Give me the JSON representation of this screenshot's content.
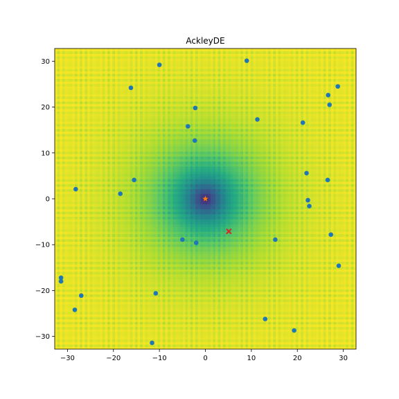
{
  "chart_data": {
    "type": "scatter",
    "title": "AckleyDE",
    "xlabel": "",
    "ylabel": "",
    "xlim": [
      -32.768,
      32.768
    ],
    "ylim": [
      -32.768,
      32.768
    ],
    "xticks": [
      -30,
      -20,
      -10,
      0,
      10,
      20,
      30
    ],
    "yticks": [
      -30,
      -20,
      -10,
      0,
      10,
      20,
      30
    ],
    "xtick_labels": [
      "−30",
      "−20",
      "−10",
      "0",
      "10",
      "20",
      "30"
    ],
    "ytick_labels": [
      "−30",
      "−20",
      "−10",
      "0",
      "10",
      "20",
      "30"
    ],
    "grid": false,
    "legend": "none",
    "background": {
      "type": "heatmap",
      "function": "Ackley",
      "colormap": "viridis",
      "minimum_at": [
        0,
        0
      ]
    },
    "series": [
      {
        "role": "population",
        "marker": "circle",
        "color": "#1f77b4",
        "points": [
          [
            -10.0,
            29.2
          ],
          [
            9.0,
            30.1
          ],
          [
            -16.2,
            24.2
          ],
          [
            28.8,
            24.5
          ],
          [
            26.7,
            22.6
          ],
          [
            27.0,
            20.5
          ],
          [
            -2.2,
            19.8
          ],
          [
            11.3,
            17.3
          ],
          [
            21.2,
            16.6
          ],
          [
            -3.8,
            15.8
          ],
          [
            -2.3,
            12.7
          ],
          [
            22.0,
            5.6
          ],
          [
            26.6,
            4.1
          ],
          [
            -15.5,
            4.1
          ],
          [
            -28.2,
            2.1
          ],
          [
            -18.5,
            1.1
          ],
          [
            22.3,
            -0.3
          ],
          [
            22.6,
            -1.6
          ],
          [
            27.3,
            -7.8
          ],
          [
            -5.0,
            -8.9
          ],
          [
            15.2,
            -8.9
          ],
          [
            -2.0,
            -9.6
          ],
          [
            29.0,
            -14.6
          ],
          [
            -31.4,
            -17.2
          ],
          [
            -31.4,
            -18.0
          ],
          [
            -27.0,
            -21.1
          ],
          [
            -10.8,
            -20.6
          ],
          [
            -28.4,
            -24.2
          ],
          [
            13.0,
            -26.2
          ],
          [
            19.3,
            -28.7
          ],
          [
            -11.6,
            -31.4
          ]
        ]
      },
      {
        "role": "best_found",
        "marker": "x",
        "color": "#d62728",
        "points": [
          [
            5.1,
            -7.1
          ]
        ]
      },
      {
        "role": "global_optimum",
        "marker": "star",
        "color": "#ff7f0e",
        "points": [
          [
            0.0,
            0.0
          ]
        ]
      }
    ]
  }
}
